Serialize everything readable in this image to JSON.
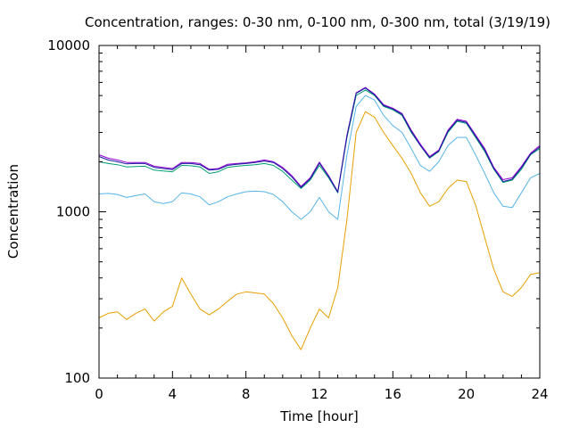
{
  "chart_data": {
    "type": "line",
    "title": "Concentration, ranges: 0-30 nm, 0-100 nm, 0-300 nm, total (3/19/19)",
    "xlabel": "Time [hour]",
    "ylabel": "Concentration",
    "xlim": [
      0,
      24
    ],
    "ylim": [
      100,
      10000
    ],
    "yscale": "log",
    "grid": false,
    "legend": "none",
    "x_ticks": [
      0,
      4,
      8,
      12,
      16,
      20,
      24
    ],
    "x_tick_labels": [
      "0",
      "4",
      "8",
      "12",
      "16",
      "20",
      "24"
    ],
    "y_ticks": [
      100,
      1000,
      10000
    ],
    "y_tick_labels": [
      "100",
      "1000",
      "10000"
    ],
    "x": [
      0,
      0.5,
      1,
      1.5,
      2,
      2.5,
      3,
      3.5,
      4,
      4.5,
      5,
      5.5,
      6,
      6.5,
      7,
      7.5,
      8,
      8.5,
      9,
      9.5,
      10,
      10.5,
      11,
      11.5,
      12,
      12.5,
      13,
      13.5,
      14,
      14.5,
      15,
      15.5,
      16,
      16.5,
      17,
      17.5,
      18,
      18.5,
      19,
      19.5,
      20,
      20.5,
      21,
      21.5,
      22,
      22.5,
      23,
      23.5,
      24
    ],
    "series": [
      {
        "color": "#e6a000",
        "values": [
          230,
          245,
          250,
          225,
          245,
          260,
          220,
          250,
          270,
          400,
          320,
          260,
          240,
          260,
          290,
          320,
          330,
          325,
          320,
          280,
          230,
          180,
          148,
          200,
          260,
          230,
          350,
          900,
          3000,
          4000,
          3700,
          3000,
          2500,
          2100,
          1700,
          1300,
          1080,
          1150,
          1380,
          1550,
          1520,
          1100,
          700,
          450,
          330,
          310,
          350,
          420,
          430
        ]
      },
      {
        "color": "#56b4e9",
        "values": [
          1280,
          1290,
          1270,
          1220,
          1250,
          1280,
          1150,
          1120,
          1150,
          1300,
          1280,
          1230,
          1100,
          1150,
          1230,
          1280,
          1320,
          1330,
          1320,
          1270,
          1150,
          1000,
          900,
          1000,
          1220,
          1000,
          900,
          2200,
          4300,
          5000,
          4700,
          3800,
          3300,
          3000,
          2400,
          1900,
          1750,
          2000,
          2500,
          2800,
          2800,
          2200,
          1700,
          1300,
          1080,
          1060,
          1300,
          1600,
          1700
        ]
      },
      {
        "color": "#009e73",
        "values": [
          2000,
          1950,
          1920,
          1860,
          1870,
          1880,
          1780,
          1760,
          1740,
          1900,
          1890,
          1860,
          1700,
          1740,
          1850,
          1880,
          1900,
          1920,
          1950,
          1900,
          1750,
          1550,
          1380,
          1550,
          1900,
          1600,
          1300,
          2800,
          5000,
          5400,
          5000,
          4300,
          4100,
          3800,
          3000,
          2500,
          2100,
          2300,
          3000,
          3500,
          3400,
          2800,
          2300,
          1800,
          1500,
          1550,
          1800,
          2200,
          2400
        ]
      },
      {
        "color": "#9400d3",
        "values": [
          2200,
          2100,
          2050,
          1980,
          1980,
          1980,
          1880,
          1850,
          1820,
          1980,
          1980,
          1950,
          1800,
          1820,
          1930,
          1950,
          1970,
          2000,
          2050,
          2000,
          1850,
          1650,
          1420,
          1600,
          1990,
          1650,
          1320,
          2900,
          5200,
          5600,
          5100,
          4400,
          4200,
          3900,
          3100,
          2550,
          2150,
          2350,
          3100,
          3600,
          3500,
          2900,
          2400,
          1850,
          1560,
          1600,
          1870,
          2250,
          2500
        ]
      },
      {
        "color": "#1a1aa0",
        "values": [
          2150,
          2050,
          2000,
          1940,
          1950,
          1950,
          1850,
          1820,
          1790,
          1950,
          1950,
          1920,
          1780,
          1800,
          1900,
          1930,
          1950,
          1980,
          2020,
          1980,
          1820,
          1620,
          1400,
          1580,
          1960,
          1630,
          1310,
          2850,
          5150,
          5550,
          5050,
          4350,
          4150,
          3850,
          3050,
          2500,
          2120,
          2320,
          3050,
          3550,
          3450,
          2850,
          2350,
          1820,
          1520,
          1570,
          1840,
          2220,
          2450
        ]
      }
    ]
  }
}
